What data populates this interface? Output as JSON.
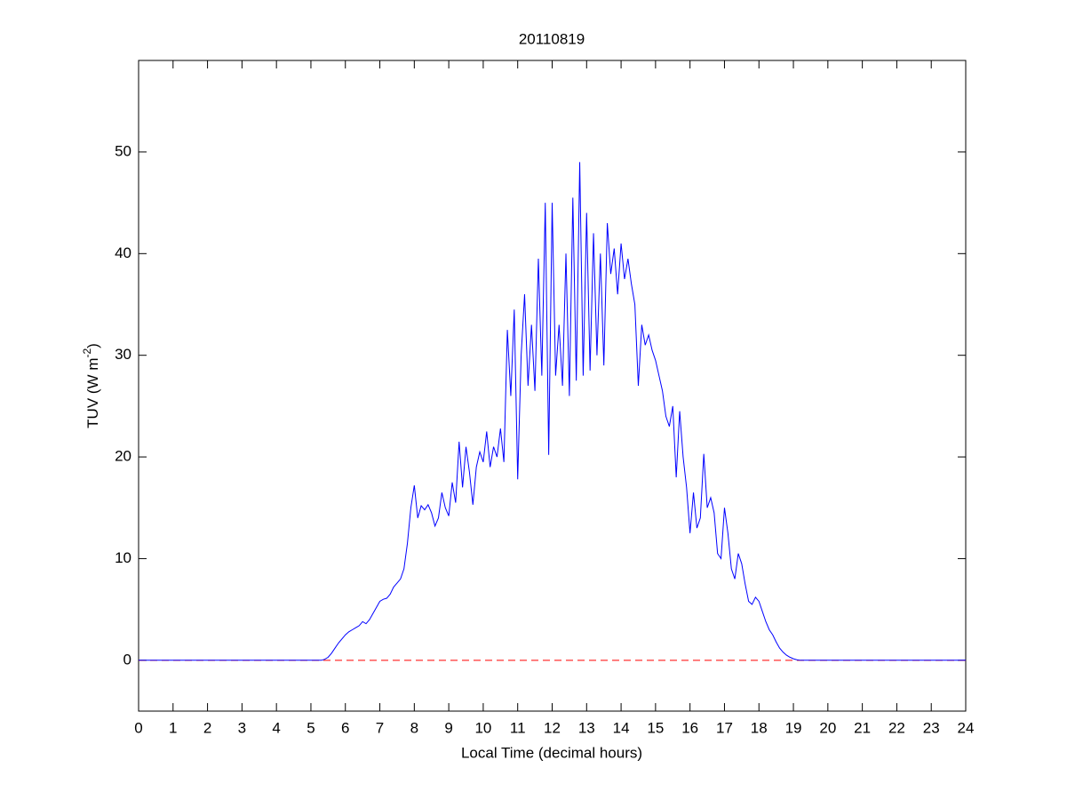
{
  "chart_data": {
    "type": "line",
    "title": "20110819",
    "xlabel": "Local Time (decimal hours)",
    "ylabel": [
      "TUV (W m",
      "-2",
      ")"
    ],
    "color": "#0000ff",
    "x": [
      0,
      5.3,
      5.4,
      5.5,
      5.6,
      5.7,
      5.8,
      5.9,
      6.0,
      6.1,
      6.2,
      6.3,
      6.4,
      6.5,
      6.6,
      6.7,
      6.8,
      6.9,
      7.0,
      7.1,
      7.2,
      7.3,
      7.4,
      7.5,
      7.6,
      7.7,
      7.8,
      7.9,
      8.0,
      8.1,
      8.2,
      8.3,
      8.4,
      8.5,
      8.6,
      8.7,
      8.8,
      8.9,
      9.0,
      9.1,
      9.2,
      9.3,
      9.4,
      9.5,
      9.6,
      9.7,
      9.8,
      9.9,
      10.0,
      10.1,
      10.2,
      10.3,
      10.4,
      10.5,
      10.6,
      10.7,
      10.8,
      10.9,
      11.0,
      11.1,
      11.2,
      11.3,
      11.4,
      11.5,
      11.6,
      11.7,
      11.8,
      11.9,
      12.0,
      12.1,
      12.2,
      12.3,
      12.4,
      12.5,
      12.6,
      12.7,
      12.8,
      12.9,
      13.0,
      13.1,
      13.2,
      13.3,
      13.4,
      13.5,
      13.6,
      13.7,
      13.8,
      13.9,
      14.0,
      14.1,
      14.2,
      14.3,
      14.4,
      14.5,
      14.6,
      14.7,
      14.8,
      14.9,
      15.0,
      15.1,
      15.2,
      15.3,
      15.4,
      15.5,
      15.6,
      15.7,
      15.8,
      15.9,
      16.0,
      16.1,
      16.2,
      16.3,
      16.4,
      16.5,
      16.6,
      16.7,
      16.8,
      16.9,
      17.0,
      17.1,
      17.2,
      17.3,
      17.4,
      17.5,
      17.6,
      17.7,
      17.8,
      17.9,
      18.0,
      18.1,
      18.2,
      18.3,
      18.4,
      18.5,
      18.6,
      18.7,
      18.8,
      18.9,
      19.0,
      19.1,
      19.2,
      19.3,
      24
    ],
    "values": [
      0,
      0,
      0.1,
      0.3,
      0.7,
      1.2,
      1.7,
      2.1,
      2.5,
      2.8,
      3.0,
      3.2,
      3.4,
      3.8,
      3.6,
      4.0,
      4.6,
      5.2,
      5.8,
      6.0,
      6.1,
      6.5,
      7.2,
      7.6,
      8.0,
      9.0,
      11.5,
      15.0,
      17.2,
      14.0,
      15.2,
      14.8,
      15.3,
      14.5,
      13.2,
      14.0,
      16.5,
      15.0,
      14.2,
      17.5,
      15.5,
      21.5,
      17.0,
      21.0,
      18.5,
      15.3,
      19.0,
      20.5,
      19.5,
      22.5,
      19.0,
      21.0,
      20.0,
      22.8,
      19.5,
      32.5,
      26.0,
      34.5,
      17.8,
      30.0,
      36.0,
      27.0,
      33.0,
      26.5,
      39.5,
      28.0,
      45.0,
      20.2,
      45.0,
      28.0,
      33.0,
      27.0,
      40.0,
      26.0,
      45.5,
      27.5,
      49.0,
      28.0,
      44.0,
      28.5,
      42.0,
      30.0,
      40.0,
      29.0,
      43.0,
      38.0,
      40.5,
      36.0,
      41.0,
      37.5,
      39.5,
      37.0,
      35.0,
      27.0,
      33.0,
      31.0,
      32.0,
      30.5,
      29.5,
      28.0,
      26.5,
      24.0,
      23.0,
      25.0,
      18.0,
      24.5,
      20.0,
      17.0,
      12.5,
      16.5,
      13.0,
      14.0,
      20.3,
      15.0,
      16.0,
      14.5,
      10.5,
      10.0,
      15.0,
      12.5,
      9.0,
      8.0,
      10.5,
      9.5,
      7.5,
      5.8,
      5.5,
      6.2,
      5.8,
      4.8,
      3.8,
      3.0,
      2.5,
      1.8,
      1.2,
      0.8,
      0.5,
      0.3,
      0.15,
      0.05,
      0,
      0,
      0
    ],
    "reference_line": {
      "y": 0,
      "color": "#ff0000",
      "dashed": true
    },
    "xlim": [
      0,
      24
    ],
    "xticks": [
      0,
      1,
      2,
      3,
      4,
      5,
      6,
      7,
      8,
      9,
      10,
      11,
      12,
      13,
      14,
      15,
      16,
      17,
      18,
      19,
      20,
      21,
      22,
      23,
      24
    ],
    "ylim": [
      -5,
      59
    ],
    "yticks": [
      0,
      10,
      20,
      30,
      40,
      50
    ],
    "grid": false
  }
}
